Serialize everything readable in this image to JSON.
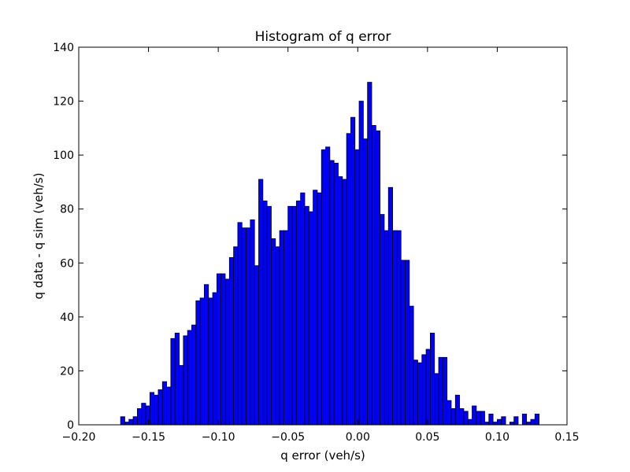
{
  "chart_data": {
    "type": "bar",
    "title": "Histogram of q error",
    "xlabel": "q error (veh/s)",
    "ylabel": "q data - q sim (veh/s)",
    "xlim": [
      -0.2,
      0.15
    ],
    "ylim": [
      0,
      140
    ],
    "xticks": [
      "−0.20",
      "−0.15",
      "−0.10",
      "−0.05",
      "0.00",
      "0.05",
      "0.10",
      "0.15"
    ],
    "yticks": [
      "0",
      "20",
      "40",
      "60",
      "80",
      "100",
      "120",
      "140"
    ],
    "grid": false,
    "bar_color": "#0000ff",
    "bin_start": -0.17,
    "bin_width": 0.003,
    "values": [
      3,
      1,
      2,
      3,
      6,
      8,
      7,
      12,
      11,
      13,
      16,
      14,
      32,
      34,
      22,
      33,
      35,
      37,
      46,
      47,
      52,
      47,
      49,
      56,
      56,
      54,
      62,
      66,
      75,
      73,
      73,
      76,
      59,
      91,
      83,
      81,
      69,
      66,
      72,
      72,
      81,
      81,
      83,
      86,
      81,
      79,
      87,
      86,
      102,
      103,
      98,
      97,
      92,
      91,
      108,
      114,
      102,
      120,
      106,
      127,
      111,
      109,
      78,
      72,
      88,
      72,
      72,
      61,
      61,
      44,
      24,
      23,
      26,
      28,
      34,
      19,
      25,
      25,
      9,
      6,
      11,
      6,
      5,
      2,
      7,
      5,
      5,
      1,
      4,
      1,
      2,
      3,
      0,
      1,
      3,
      0,
      4,
      1,
      2,
      4
    ]
  }
}
